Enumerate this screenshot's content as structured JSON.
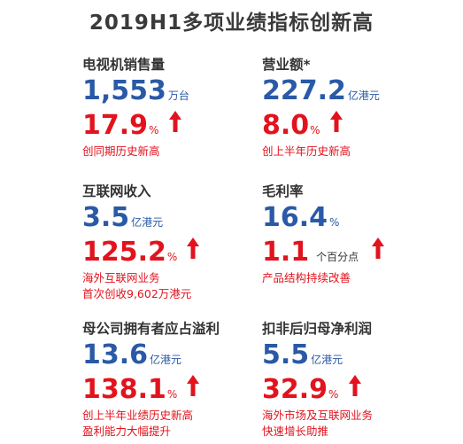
{
  "title": "2019H1多项业绩指标创新高",
  "accent_blue": "#2a59a6",
  "accent_red": "#e2131d",
  "arrow_icon": "up-arrow-icon",
  "metrics": [
    {
      "label": "电视机销售量",
      "value": "1,553",
      "value_unit": "万台",
      "growth": "17.9",
      "growth_unit": "%",
      "note": [
        "创同期历史新高"
      ]
    },
    {
      "label": "营业额*",
      "value": "227.2",
      "value_unit": "亿港元",
      "growth": "8.0",
      "growth_unit": "%",
      "note": [
        "创上半年历史新高"
      ]
    },
    {
      "label": "互联网收入",
      "value": "3.5",
      "value_unit": "亿港元",
      "growth": "125.2",
      "growth_unit": "%",
      "note": [
        "海外互联网业务",
        "首次创收9,602万港元"
      ]
    },
    {
      "label": "毛利率",
      "value": "16.4",
      "value_unit": "%",
      "growth": "1.1",
      "growth_unit": "个百分点",
      "note": [
        "产品结构持续改善"
      ]
    },
    {
      "label": "母公司拥有者应占溢利",
      "value": "13.6",
      "value_unit": "亿港元",
      "growth": "138.1",
      "growth_unit": "%",
      "note": [
        "创上半年业绩历史新高",
        "盈利能力大幅提升"
      ]
    },
    {
      "label": "扣非后归母净利润",
      "value": "5.5",
      "value_unit": "亿港元",
      "growth": "32.9",
      "growth_unit": "%",
      "note": [
        "海外市场及互联网业务",
        "快速增长助推"
      ]
    }
  ]
}
